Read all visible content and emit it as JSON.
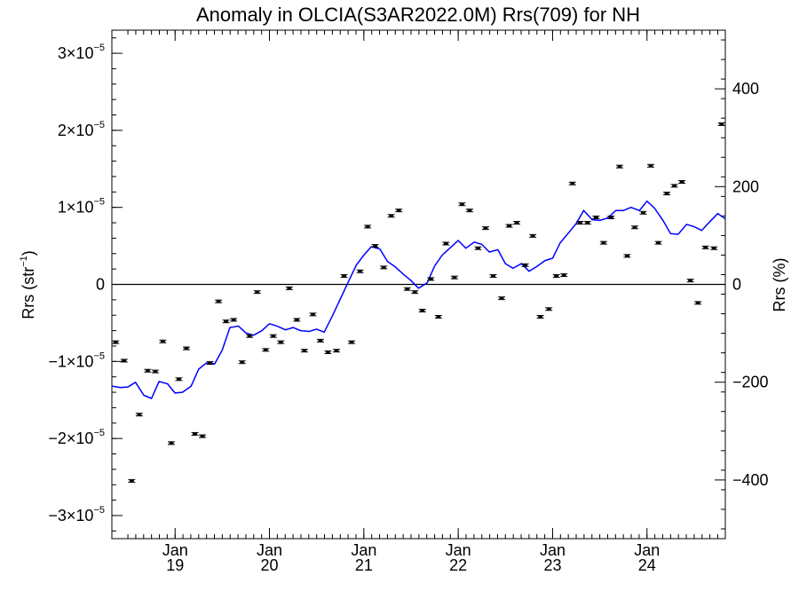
{
  "chart_data": {
    "type": "scatter",
    "title": "Anomaly in OLCIA(S3AR2022.0M) Rrs(709) for NH",
    "ylabel_left_main": "Rrs (str",
    "ylabel_left_sup": "−1",
    "ylabel_left_close": ")",
    "ylabel_right": "Rrs (%)",
    "xlim": [
      2018.33,
      2024.83
    ],
    "ylim_left": [
      -3.3e-05,
      3.3e-05
    ],
    "ylim_right": [
      -520,
      520
    ],
    "grid": false,
    "left_ticks": [
      {
        "value": -3e-05,
        "mant": "−3×10",
        "exp": "−5"
      },
      {
        "value": -2e-05,
        "mant": "−2×10",
        "exp": "−5"
      },
      {
        "value": -1e-05,
        "mant": "−1×10",
        "exp": "−5"
      },
      {
        "value": 0,
        "mant": "0",
        "exp": ""
      },
      {
        "value": 1e-05,
        "mant": "1×10",
        "exp": "−5"
      },
      {
        "value": 2e-05,
        "mant": "2×10",
        "exp": "−5"
      },
      {
        "value": 3e-05,
        "mant": "3×10",
        "exp": "−5"
      }
    ],
    "right_ticks": [
      {
        "value": -400,
        "label": "−400"
      },
      {
        "value": -200,
        "label": "−200"
      },
      {
        "value": 0,
        "label": "0"
      },
      {
        "value": 200,
        "label": "200"
      },
      {
        "value": 400,
        "label": "400"
      }
    ],
    "x_ticks": [
      {
        "value": 2019.0,
        "line1": "Jan",
        "line2": "19"
      },
      {
        "value": 2020.0,
        "line1": "Jan",
        "line2": "20"
      },
      {
        "value": 2021.0,
        "line1": "Jan",
        "line2": "21"
      },
      {
        "value": 2022.0,
        "line1": "Jan",
        "line2": "22"
      },
      {
        "value": 2023.0,
        "line1": "Jan",
        "line2": "23"
      },
      {
        "value": 2024.0,
        "line1": "Jan",
        "line2": "24"
      }
    ],
    "series": [
      {
        "kind": "monthly_points_with_error_bars",
        "color": "#000000",
        "x": [
          2018.37,
          2018.46,
          2018.54,
          2018.62,
          2018.71,
          2018.79,
          2018.87,
          2018.96,
          2019.04,
          2019.12,
          2019.21,
          2019.29,
          2019.37,
          2019.46,
          2019.54,
          2019.62,
          2019.71,
          2019.79,
          2019.87,
          2019.96,
          2020.04,
          2020.12,
          2020.21,
          2020.29,
          2020.37,
          2020.46,
          2020.54,
          2020.62,
          2020.71,
          2020.79,
          2020.87,
          2020.96,
          2021.04,
          2021.12,
          2021.21,
          2021.29,
          2021.37,
          2021.46,
          2021.54,
          2021.62,
          2021.71,
          2021.79,
          2021.87,
          2021.96,
          2022.04,
          2022.12,
          2022.21,
          2022.29,
          2022.37,
          2022.46,
          2022.54,
          2022.62,
          2022.71,
          2022.79,
          2022.87,
          2022.96,
          2023.04,
          2023.12,
          2023.21,
          2023.29,
          2023.37,
          2023.46,
          2023.54,
          2023.62,
          2023.71,
          2023.79,
          2023.87,
          2023.96,
          2024.04,
          2024.12,
          2024.21,
          2024.29,
          2024.37,
          2024.46,
          2024.54,
          2024.62,
          2024.71,
          2024.79
        ],
        "y": [
          -7.5e-06,
          -9.9e-06,
          -2.55e-05,
          -1.69e-05,
          -1.12e-05,
          -1.13e-05,
          -7.4e-06,
          -2.06e-05,
          -1.23e-05,
          -8.3e-06,
          -1.94e-05,
          -1.97e-05,
          -1.02e-05,
          -2.2e-06,
          -4.8e-06,
          -4.6e-06,
          -1.01e-05,
          -6.7e-06,
          -1e-06,
          -8.5e-06,
          -6.7e-06,
          -7.5e-06,
          -5e-07,
          -4.6e-06,
          -8.6e-06,
          -3.9e-06,
          -7.3e-06,
          -8.8e-06,
          -8.6e-06,
          1.1e-06,
          -7.5e-06,
          1.7e-06,
          7.5e-06,
          5e-06,
          2.2e-06,
          8.9e-06,
          9.6e-06,
          -6e-07,
          -1e-06,
          -3.4e-06,
          7e-07,
          -4.2e-06,
          5.3e-06,
          9e-07,
          1.04e-05,
          9.6e-06,
          4.7e-06,
          7.3e-06,
          1.1e-06,
          -1.8e-06,
          7.6e-06,
          8e-06,
          2.5e-06,
          6.3e-06,
          -4.2e-06,
          -3.2e-06,
          1.1e-06,
          1.2e-06,
          1.31e-05,
          8e-06,
          8e-06,
          8.7e-06,
          5.4e-06,
          8.7e-06,
          1.53e-05,
          3.7e-06,
          7.4e-06,
          9.3e-06,
          1.54e-05,
          5.4e-06,
          1.18e-05,
          1.28e-05,
          1.33e-05,
          5e-07,
          -2.4e-06,
          4.8e-06,
          4.7e-06,
          2.08e-05
        ]
      },
      {
        "kind": "running_mean_line",
        "color": "#0000ff",
        "x": [
          2018.33,
          2018.42,
          2018.5,
          2018.58,
          2018.67,
          2018.75,
          2018.83,
          2018.92,
          2019.0,
          2019.08,
          2019.17,
          2019.25,
          2019.33,
          2019.42,
          2019.5,
          2019.58,
          2019.67,
          2019.75,
          2019.83,
          2019.92,
          2020.0,
          2020.08,
          2020.17,
          2020.25,
          2020.33,
          2020.42,
          2020.5,
          2020.58,
          2020.67,
          2020.75,
          2020.83,
          2020.92,
          2021.0,
          2021.08,
          2021.17,
          2021.25,
          2021.33,
          2021.42,
          2021.5,
          2021.58,
          2021.67,
          2021.75,
          2021.83,
          2021.92,
          2022.0,
          2022.08,
          2022.17,
          2022.25,
          2022.33,
          2022.42,
          2022.5,
          2022.58,
          2022.67,
          2022.75,
          2022.83,
          2022.92,
          2023.0,
          2023.08,
          2023.17,
          2023.25,
          2023.33,
          2023.42,
          2023.5,
          2023.58,
          2023.67,
          2023.75,
          2023.83,
          2023.92,
          2024.0,
          2024.08,
          2024.17,
          2024.25,
          2024.33,
          2024.42,
          2024.5,
          2024.58,
          2024.67,
          2024.75,
          2024.83
        ],
        "y": [
          -1.32e-05,
          -1.34e-05,
          -1.33e-05,
          -1.27e-05,
          -1.44e-05,
          -1.48e-05,
          -1.26e-05,
          -1.29e-05,
          -1.41e-05,
          -1.4e-05,
          -1.32e-05,
          -1.1e-05,
          -1.02e-05,
          -1.03e-05,
          -8.5e-06,
          -5.6e-06,
          -5.4e-06,
          -6.3e-06,
          -6.6e-06,
          -6e-06,
          -5.1e-06,
          -5.4e-06,
          -5.9e-06,
          -5.6e-06,
          -6e-06,
          -6.1e-06,
          -5.8e-06,
          -6.2e-06,
          -4e-06,
          -1.9e-06,
          2e-07,
          2.5e-06,
          3.8e-06,
          4.9e-06,
          4.6e-06,
          3e-06,
          2.3e-06,
          1.3e-06,
          5e-07,
          -5e-07,
          2e-07,
          2.4e-06,
          3.8e-06,
          4.8e-06,
          5.7e-06,
          4.7e-06,
          5.5e-06,
          5.2e-06,
          4.2e-06,
          4.5e-06,
          2.7e-06,
          2.1e-06,
          2.7e-06,
          1.7e-06,
          2.3e-06,
          3.1e-06,
          3.4e-06,
          5.4e-06,
          6.7e-06,
          7.9e-06,
          9.6e-06,
          8.4e-06,
          8.3e-06,
          8.6e-06,
          9.6e-06,
          9.6e-06,
          1e-05,
          9.6e-06,
          1.08e-05,
          9.9e-06,
          8.3e-06,
          6.6e-06,
          6.5e-06,
          7.8e-06,
          7.5e-06,
          7e-06,
          8.2e-06,
          9.2e-06,
          8.5e-06
        ]
      }
    ]
  }
}
